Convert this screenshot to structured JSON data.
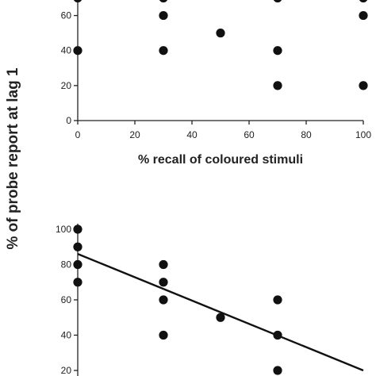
{
  "figure": {
    "ylabel": "% of probe report at lag 1",
    "colors": {
      "axis": "#222222",
      "marker": "#111111",
      "line": "#111111",
      "background": "#ffffff"
    }
  },
  "chart_data": [
    {
      "type": "scatter",
      "xlabel": "% recall of coloured stimuli",
      "xlim": [
        0,
        100
      ],
      "ylim": [
        0,
        70
      ],
      "xticks": [
        0,
        20,
        40,
        60,
        80,
        100
      ],
      "yticks": [
        0,
        20,
        40,
        60
      ],
      "grid": false,
      "points": [
        {
          "x": 0,
          "y": 70
        },
        {
          "x": 30,
          "y": 70
        },
        {
          "x": 70,
          "y": 70
        },
        {
          "x": 100,
          "y": 70
        },
        {
          "x": 30,
          "y": 60
        },
        {
          "x": 100,
          "y": 60
        },
        {
          "x": 50,
          "y": 50
        },
        {
          "x": 0,
          "y": 40
        },
        {
          "x": 30,
          "y": 40
        },
        {
          "x": 70,
          "y": 40
        },
        {
          "x": 70,
          "y": 20
        },
        {
          "x": 100,
          "y": 20
        }
      ]
    },
    {
      "type": "scatter",
      "xlim": [
        0,
        100
      ],
      "ylim": [
        20,
        100
      ],
      "yticks": [
        20,
        40,
        60,
        80,
        100
      ],
      "grid": false,
      "points": [
        {
          "x": 0,
          "y": 100
        },
        {
          "x": 0,
          "y": 90
        },
        {
          "x": 0,
          "y": 80
        },
        {
          "x": 0,
          "y": 70
        },
        {
          "x": 30,
          "y": 80
        },
        {
          "x": 30,
          "y": 70
        },
        {
          "x": 30,
          "y": 60
        },
        {
          "x": 30,
          "y": 40
        },
        {
          "x": 50,
          "y": 50
        },
        {
          "x": 70,
          "y": 60
        },
        {
          "x": 70,
          "y": 40
        },
        {
          "x": 70,
          "y": 20
        }
      ],
      "trendline": {
        "x": [
          0,
          100
        ],
        "y": [
          86,
          20
        ]
      }
    }
  ]
}
